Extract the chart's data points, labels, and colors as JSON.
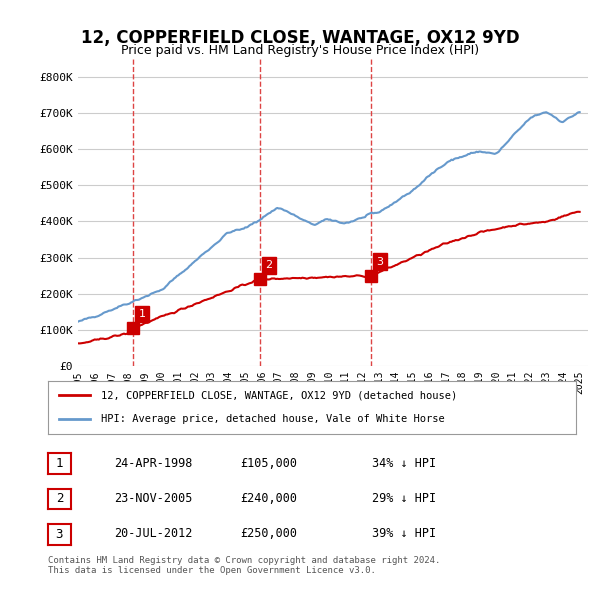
{
  "title": "12, COPPERFIELD CLOSE, WANTAGE, OX12 9YD",
  "subtitle": "Price paid vs. HM Land Registry's House Price Index (HPI)",
  "ylabel": "",
  "ylim": [
    0,
    850000
  ],
  "yticks": [
    0,
    100000,
    200000,
    300000,
    400000,
    500000,
    600000,
    700000,
    800000
  ],
  "ytick_labels": [
    "£0",
    "£100K",
    "£200K",
    "£300K",
    "£400K",
    "£500K",
    "£600K",
    "£700K",
    "£800K"
  ],
  "x_start_year": 1995,
  "x_end_year": 2025,
  "sales": [
    {
      "date_num": 1998.31,
      "price": 105000,
      "label": "1"
    },
    {
      "date_num": 2005.9,
      "price": 240000,
      "label": "2"
    },
    {
      "date_num": 2012.55,
      "price": 250000,
      "label": "3"
    }
  ],
  "sale_vlines": [
    1998.31,
    2005.9,
    2012.55
  ],
  "legend_entries": [
    {
      "label": "12, COPPERFIELD CLOSE, WANTAGE, OX12 9YD (detached house)",
      "color": "#cc0000",
      "lw": 2
    },
    {
      "label": "HPI: Average price, detached house, Vale of White Horse",
      "color": "#6699cc",
      "lw": 2
    }
  ],
  "table_rows": [
    {
      "num": "1",
      "date": "24-APR-1998",
      "price": "£105,000",
      "hpi": "34% ↓ HPI"
    },
    {
      "num": "2",
      "date": "23-NOV-2005",
      "price": "£240,000",
      "hpi": "29% ↓ HPI"
    },
    {
      "num": "3",
      "date": "20-JUL-2012",
      "price": "£250,000",
      "hpi": "39% ↓ HPI"
    }
  ],
  "footer": "Contains HM Land Registry data © Crown copyright and database right 2024.\nThis data is licensed under the Open Government Licence v3.0.",
  "red_color": "#cc0000",
  "blue_color": "#6699cc",
  "vline_color": "#dd4444",
  "grid_color": "#cccccc",
  "background_color": "#ffffff"
}
